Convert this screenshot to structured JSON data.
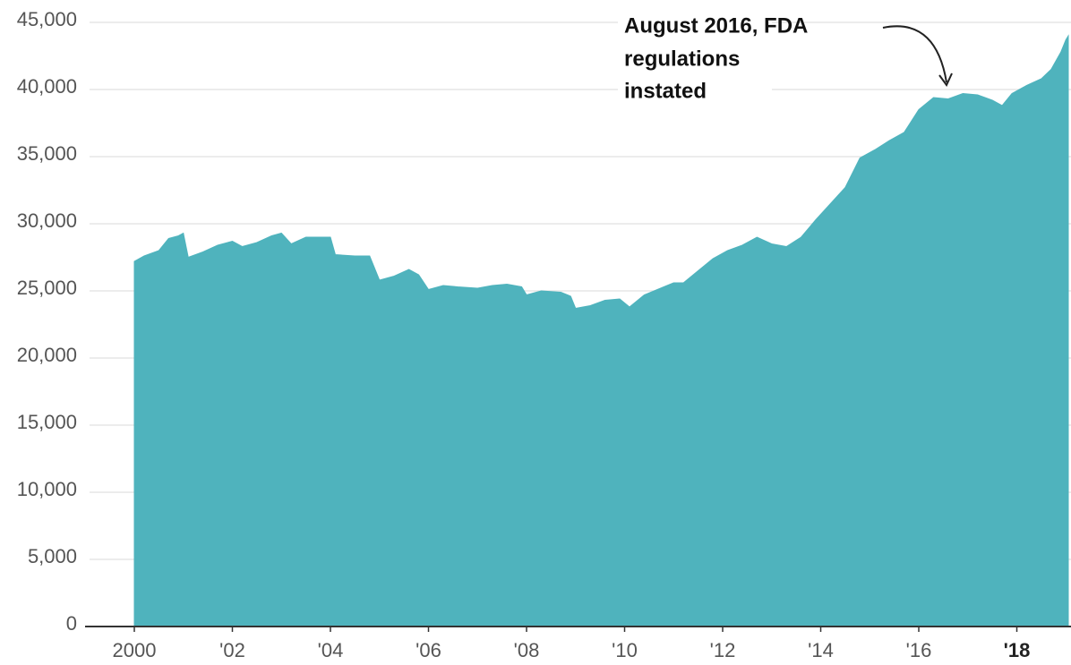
{
  "chart_data": {
    "type": "area",
    "color": "#4fb3bd",
    "grid": true,
    "xlim": [
      2000,
      2019.05
    ],
    "ylim": [
      0,
      45000
    ],
    "xticks": [
      2000,
      {
        "value": 2002,
        "label": "'02"
      },
      {
        "value": 2004,
        "label": "'04"
      },
      {
        "value": 2006,
        "label": "'06"
      },
      {
        "value": 2008,
        "label": "'08"
      },
      {
        "value": 2010,
        "label": "'10"
      },
      {
        "value": 2012,
        "label": "'12"
      },
      {
        "value": 2014,
        "label": "'14"
      },
      {
        "value": 2016,
        "label": "'16"
      },
      {
        "value": 2018,
        "label": "'18"
      }
    ],
    "yticks": [
      0,
      {
        "value": 5000,
        "label": "5,000"
      },
      {
        "value": 10000,
        "label": "10,000"
      },
      {
        "value": 15000,
        "label": "15,000"
      },
      {
        "value": 20000,
        "label": "20,000"
      },
      {
        "value": 25000,
        "label": "25,000"
      },
      {
        "value": 30000,
        "label": "30,000"
      },
      {
        "value": 35000,
        "label": "35,000"
      },
      {
        "value": 40000,
        "label": "40,000"
      },
      {
        "value": 45000,
        "label": "45,000"
      }
    ],
    "annotation": [
      "August 2016, FDA",
      "regulations",
      "instated"
    ],
    "x": [
      2000.0,
      2000.2,
      2000.5,
      2000.7,
      2000.9,
      2001.0,
      2001.1,
      2001.4,
      2001.7,
      2002.0,
      2002.2,
      2002.5,
      2002.8,
      2003.0,
      2003.2,
      2003.5,
      2003.8,
      2004.0,
      2004.1,
      2004.5,
      2004.8,
      2005.0,
      2005.3,
      2005.6,
      2005.8,
      2006.0,
      2006.3,
      2006.6,
      2007.0,
      2007.3,
      2007.6,
      2007.9,
      2008.0,
      2008.3,
      2008.7,
      2008.9,
      2009.0,
      2009.3,
      2009.6,
      2009.9,
      2010.1,
      2010.4,
      2010.8,
      2011.0,
      2011.2,
      2011.5,
      2011.8,
      2012.1,
      2012.4,
      2012.7,
      2013.0,
      2013.3,
      2013.6,
      2013.9,
      2014.2,
      2014.5,
      2014.8,
      2015.1,
      2015.4,
      2015.7,
      2016.0,
      2016.3,
      2016.6,
      2016.9,
      2017.2,
      2017.5,
      2017.7,
      2017.9,
      2018.2,
      2018.5,
      2018.7,
      2018.9,
      2019.0,
      2019.05
    ],
    "values": [
      27200,
      27600,
      28000,
      28900,
      29100,
      29300,
      27500,
      27900,
      28400,
      28700,
      28300,
      28600,
      29100,
      29300,
      28500,
      29000,
      29000,
      29000,
      27700,
      27600,
      27600,
      25800,
      26100,
      26600,
      26200,
      25100,
      25400,
      25300,
      25200,
      25400,
      25500,
      25300,
      24700,
      25000,
      24900,
      24600,
      23700,
      23900,
      24300,
      24400,
      23800,
      24700,
      25300,
      25600,
      25600,
      26500,
      27400,
      28000,
      28400,
      29000,
      28500,
      28300,
      29000,
      30300,
      31500,
      32700,
      34900,
      35500,
      36200,
      36800,
      38500,
      39400,
      39300,
      39700,
      39600,
      39200,
      38800,
      39700,
      40300,
      40800,
      41500,
      42800,
      43700,
      44000
    ]
  }
}
